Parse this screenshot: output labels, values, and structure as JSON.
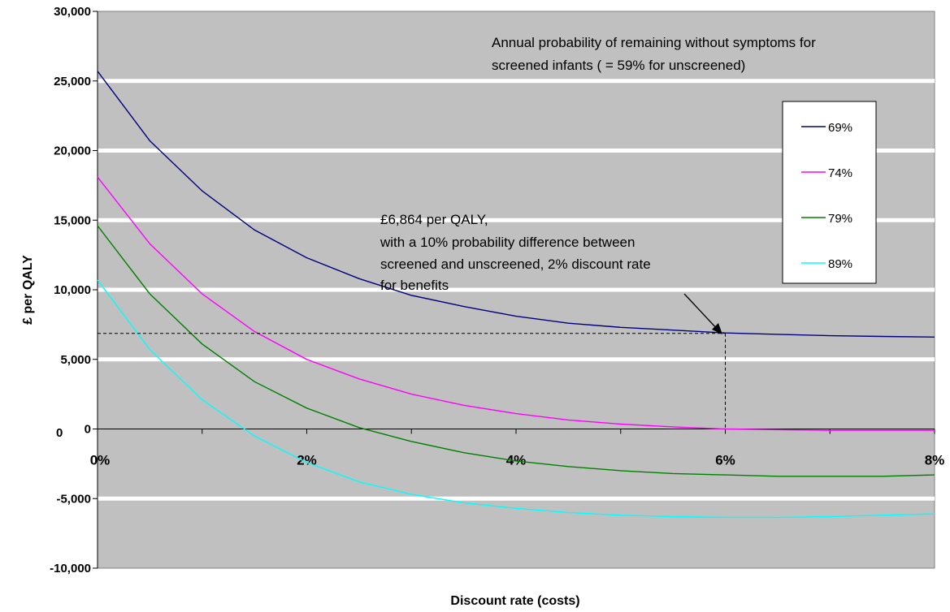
{
  "chart_data": {
    "type": "line",
    "xlabel": "Discount rate (costs)",
    "ylabel": "£ per QALY",
    "xlim": [
      0,
      8
    ],
    "ylim": [
      -10000,
      30000
    ],
    "y_ticks": [
      {
        "value": 30000,
        "label": "30,000"
      },
      {
        "value": 25000,
        "label": "25,000"
      },
      {
        "value": 20000,
        "label": "20,000"
      },
      {
        "value": 15000,
        "label": "15,000"
      },
      {
        "value": 10000,
        "label": "10,000"
      },
      {
        "value": 5000,
        "label": "5,000"
      },
      {
        "value": 0,
        "label": "0"
      },
      {
        "value": -5000,
        "label": "-5,000"
      },
      {
        "value": -10000,
        "label": "-10,000"
      }
    ],
    "x_ticks": [
      {
        "value": 0,
        "label": "0%"
      },
      {
        "value": 2,
        "label": "2%"
      },
      {
        "value": 4,
        "label": "4%"
      },
      {
        "value": 6,
        "label": "6%"
      },
      {
        "value": 8,
        "label": "8%"
      }
    ],
    "origin_label": "0",
    "grid": true,
    "legend_position": "right",
    "plot_background": "#c0c0c0",
    "x": [
      0,
      0.5,
      1,
      1.5,
      2,
      2.5,
      3,
      3.5,
      4,
      4.5,
      5,
      5.5,
      6,
      6.5,
      7,
      7.5,
      8
    ],
    "series": [
      {
        "name": "69%",
        "color": "#000080",
        "values": [
          25700,
          20700,
          17100,
          14300,
          12300,
          10800,
          9600,
          8800,
          8100,
          7600,
          7300,
          7100,
          6900,
          6800,
          6700,
          6650,
          6600
        ]
      },
      {
        "name": "74%",
        "color": "#ff00ff",
        "values": [
          18100,
          13300,
          9700,
          7000,
          5000,
          3600,
          2500,
          1700,
          1100,
          650,
          350,
          150,
          0,
          -50,
          -100,
          -100,
          -100
        ]
      },
      {
        "name": "79%",
        "color": "#008000",
        "values": [
          14600,
          9700,
          6100,
          3400,
          1500,
          100,
          -900,
          -1700,
          -2300,
          -2700,
          -3000,
          -3200,
          -3300,
          -3400,
          -3400,
          -3400,
          -3300
        ]
      },
      {
        "name": "89%",
        "color": "#00ffff",
        "values": [
          10700,
          5700,
          2100,
          -500,
          -2400,
          -3800,
          -4700,
          -5300,
          -5700,
          -6000,
          -6200,
          -6300,
          -6350,
          -6350,
          -6300,
          -6200,
          -6100
        ]
      }
    ],
    "annotations": {
      "title_line1": "Annual probability of remaining without symptoms for",
      "title_line2": "screened infants  (  = 59% for unscreened)",
      "point_note_line1": "£6,864 per QALY,",
      "point_note_line2": "with a 10% probability difference between",
      "point_note_line3": "screened and unscreened, 2% discount rate",
      "point_note_line4": "for benefits",
      "marked_point": {
        "x": 6,
        "y": 6864
      }
    }
  }
}
